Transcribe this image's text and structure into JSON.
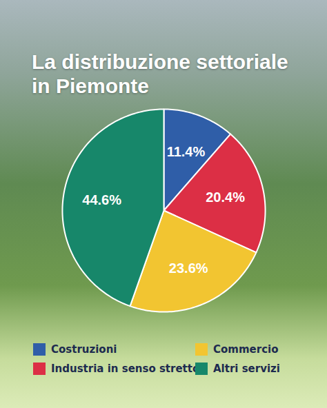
{
  "chart_data": {
    "type": "pie",
    "title": "La distribuzione settoriale in Piemonte",
    "categories": [
      "Costruzioni",
      "Industria in senso stretto",
      "Commercio",
      "Altri servizi"
    ],
    "values": [
      11.4,
      20.4,
      23.6,
      44.6
    ],
    "value_labels": [
      "11.4%",
      "20.4%",
      "23.6%",
      "44.6%"
    ],
    "colors": [
      "#2f5ea8",
      "#dc2f45",
      "#f2c531",
      "#17876a"
    ],
    "data_labels": true,
    "legend": "bottom"
  }
}
